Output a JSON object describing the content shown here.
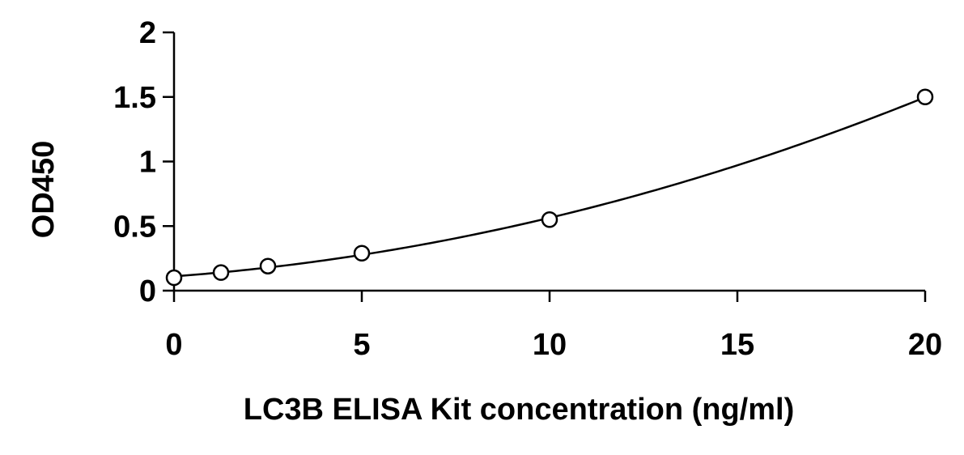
{
  "chart_data": {
    "type": "scatter",
    "title": "",
    "xlabel": "LC3B ELISA Kit concentration (ng/ml)",
    "ylabel": "OD450",
    "xlim": [
      0,
      20
    ],
    "ylim": [
      0,
      2
    ],
    "xticks": [
      0,
      5,
      10,
      15,
      20
    ],
    "xtick_labels": [
      "0",
      "5",
      "10",
      "15",
      "20"
    ],
    "yticks": [
      0,
      0.5,
      1,
      1.5,
      2
    ],
    "ytick_labels": [
      "0",
      "0.5",
      "1",
      "1.5",
      "2"
    ],
    "grid": false,
    "legend": "none",
    "series": [
      {
        "x": [
          0,
          1.25,
          2.5,
          5,
          10,
          20
        ],
        "y": [
          0.1,
          0.14,
          0.19,
          0.29,
          0.55,
          1.5
        ],
        "marker": "open-circle",
        "fit": "smooth-curve"
      }
    ],
    "colors": {
      "line": "#000000",
      "marker_fill": "#ffffff"
    }
  }
}
